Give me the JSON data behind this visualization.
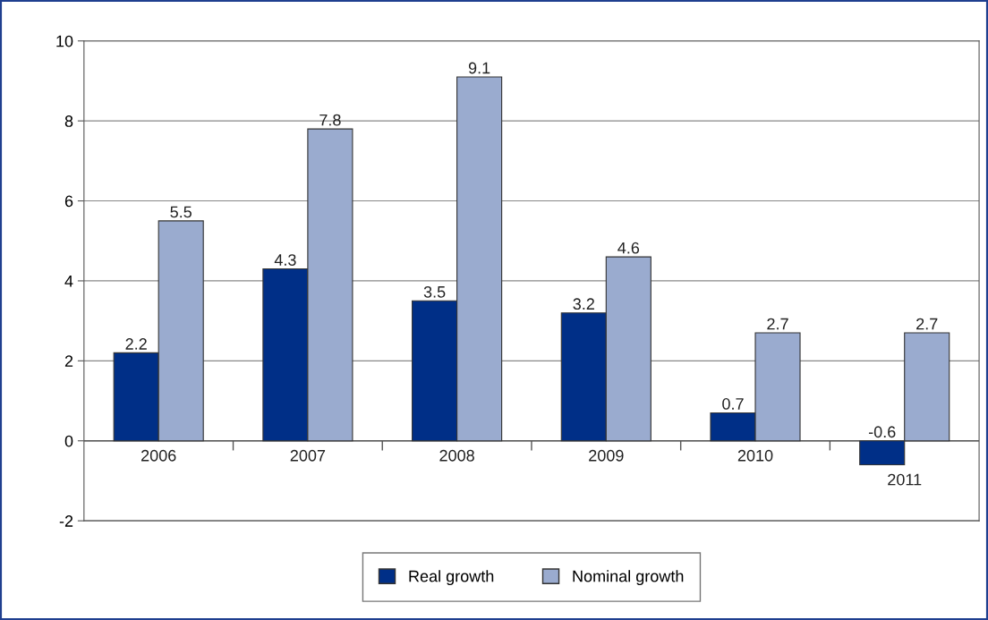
{
  "chart_data": {
    "type": "bar",
    "categories": [
      "2006",
      "2007",
      "2008",
      "2009",
      "2010",
      "2011"
    ],
    "series": [
      {
        "name": "Real growth",
        "color": "#002f87",
        "values": [
          2.2,
          4.3,
          3.5,
          3.2,
          0.7,
          -0.6
        ]
      },
      {
        "name": "Nominal growth",
        "color": "#9aabcf",
        "values": [
          5.5,
          7.8,
          9.1,
          4.6,
          2.7,
          2.7
        ]
      }
    ],
    "ylim": [
      -2,
      10
    ],
    "yticks": [
      -2,
      0,
      2,
      4,
      6,
      8,
      10
    ],
    "grid": "y",
    "legend": "bottom",
    "data_labels": true
  }
}
